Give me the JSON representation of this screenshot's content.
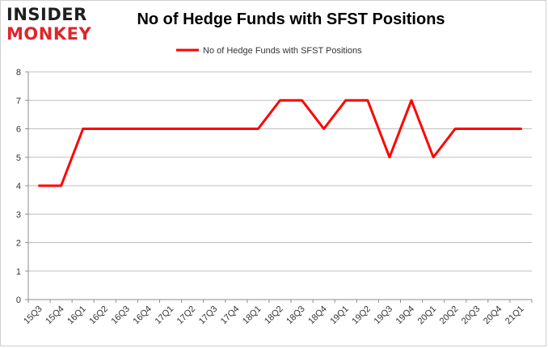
{
  "logo": {
    "line1": "INSIDER",
    "line2": "MONKEY"
  },
  "chart_data": {
    "type": "line",
    "title": "No of Hedge Funds with SFST Positions",
    "legend_position": "top-center",
    "grid": true,
    "xlabel": "",
    "ylabel": "",
    "ylim": [
      0,
      8
    ],
    "yticks": [
      0,
      1,
      2,
      3,
      4,
      5,
      6,
      7,
      8
    ],
    "categories": [
      "15Q3",
      "15Q4",
      "16Q1",
      "16Q2",
      "16Q3",
      "16Q4",
      "17Q1",
      "17Q2",
      "17Q3",
      "17Q4",
      "18Q1",
      "18Q2",
      "18Q3",
      "18Q4",
      "19Q1",
      "19Q2",
      "19Q3",
      "19Q4",
      "20Q1",
      "20Q2",
      "20Q3",
      "20Q4",
      "21Q1"
    ],
    "series": [
      {
        "name": "No of Hedge Funds with SFST Positions",
        "color": "#ff0000",
        "values": [
          4,
          4,
          6,
          6,
          6,
          6,
          6,
          6,
          6,
          6,
          6,
          7,
          7,
          6,
          7,
          7,
          5,
          7,
          5,
          6,
          6,
          6,
          6
        ]
      }
    ]
  }
}
